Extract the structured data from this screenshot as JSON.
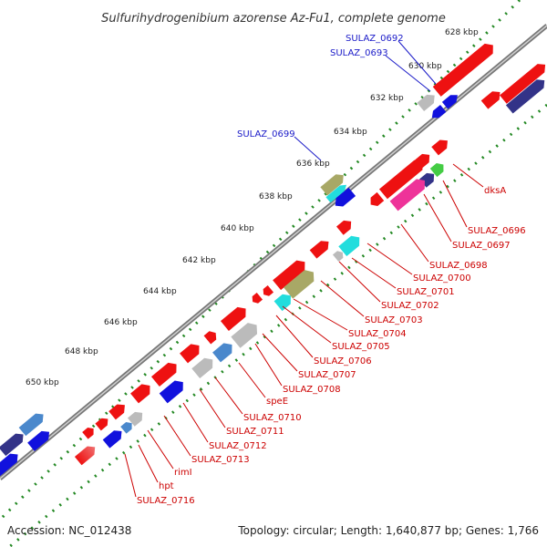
{
  "title": "Sulfurihydrogenibium azorense Az-Fu1, complete genome",
  "footer": {
    "accession": "Accession: NC_012438",
    "topology": "Topology: circular; Length: 1,640,877 bp; Genes: 1,766"
  },
  "ticks": [
    "628 kbp",
    "630 kbp",
    "632 kbp",
    "634 kbp",
    "636 kbp",
    "638 kbp",
    "640 kbp",
    "642 kbp",
    "644 kbp",
    "646 kbp",
    "648 kbp",
    "650 kbp"
  ],
  "outer_labels": [
    "SULAZ_0692",
    "SULAZ_0693",
    "SULAZ_0699"
  ],
  "inner_labels": [
    "dksA",
    "SULAZ_0696",
    "SULAZ_0697",
    "SULAZ_0698",
    "SULAZ_0700",
    "SULAZ_0701",
    "SULAZ_0702",
    "SULAZ_0703",
    "SULAZ_0704",
    "SULAZ_0705",
    "SULAZ_0706",
    "SULAZ_0707",
    "SULAZ_0708",
    "speE",
    "SULAZ_0710",
    "SULAZ_0711",
    "SULAZ_0712",
    "SULAZ_0713",
    "rimI",
    "hpt",
    "SULAZ_0716"
  ],
  "colors": {
    "backbone": "#888888",
    "gene_red": "#ee1111",
    "gene_blue": "#1111dd",
    "gene_grey": "#bbbbbb",
    "gene_cyan": "#22dddd",
    "gene_navy": "#333388",
    "gene_olive": "#a8a866",
    "gene_pink": "#ee3399",
    "gene_green": "#44cc44",
    "tick_dots": "#228822",
    "label_red": "#cc0000",
    "label_blue": "#1a1ac8"
  }
}
